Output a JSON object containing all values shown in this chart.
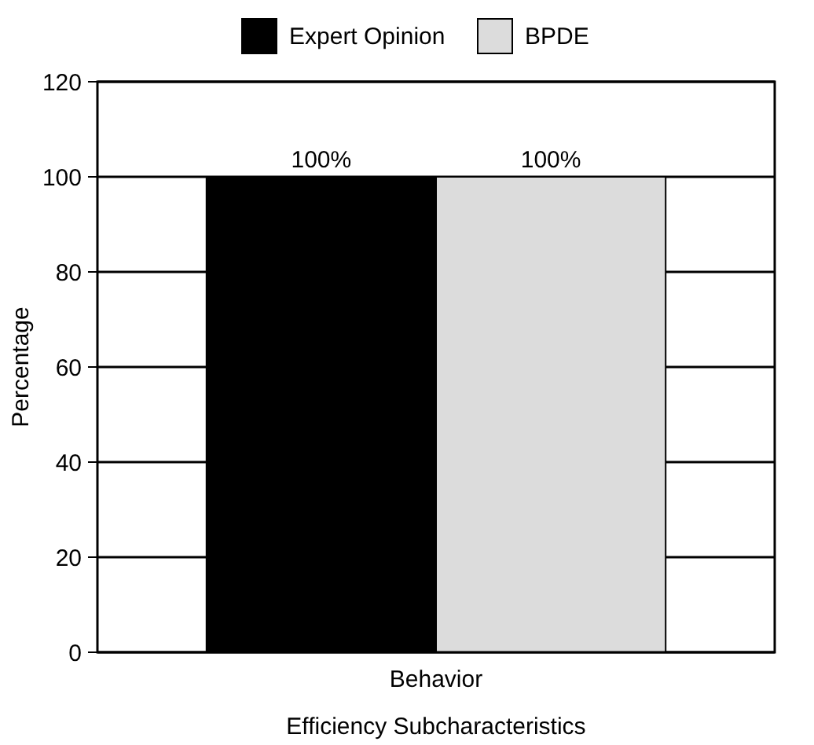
{
  "chart_data": {
    "type": "bar",
    "categories": [
      "Behavior"
    ],
    "xlabel": "Efficiency Subcharacteristics",
    "ylabel": "Percentage",
    "ylim": [
      0,
      120
    ],
    "yticks": [
      0,
      20,
      40,
      60,
      80,
      100,
      120
    ],
    "grid": "y",
    "legend": "top",
    "series": [
      {
        "name": "Expert Opinion",
        "color": "#000000",
        "values": [
          100
        ],
        "value_labels": [
          "100%"
        ]
      },
      {
        "name": "BPDE",
        "color": "#dcdcdc",
        "values": [
          100
        ],
        "value_labels": [
          "100%"
        ]
      }
    ]
  }
}
